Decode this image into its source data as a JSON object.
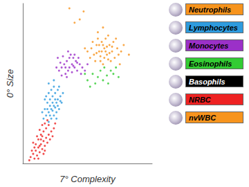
{
  "chart_data": {
    "type": "scatter",
    "x_label": "7° Complexity",
    "y_label": "0° Size",
    "xlim": [
      0,
      100
    ],
    "ylim": [
      0,
      100
    ],
    "tick_labels": false,
    "grid": false,
    "legend": "right",
    "series": [
      {
        "name": "Neutrophils",
        "color": "#f7941d",
        "values": [
          [
            50,
            70
          ],
          [
            53,
            72
          ],
          [
            55,
            68
          ],
          [
            57,
            74
          ],
          [
            59,
            70
          ],
          [
            61,
            76
          ],
          [
            63,
            72
          ],
          [
            65,
            68
          ],
          [
            67,
            74
          ],
          [
            69,
            70
          ],
          [
            71,
            66
          ],
          [
            73,
            72
          ],
          [
            60,
            64
          ],
          [
            62,
            62
          ],
          [
            64,
            78
          ],
          [
            66,
            80
          ],
          [
            58,
            78
          ],
          [
            56,
            64
          ],
          [
            54,
            76
          ],
          [
            68,
            64
          ],
          [
            70,
            76
          ],
          [
            72,
            78
          ],
          [
            74,
            68
          ],
          [
            76,
            70
          ],
          [
            61,
            70
          ],
          [
            63,
            66
          ],
          [
            59,
            74
          ],
          [
            65,
            73
          ],
          [
            67,
            69
          ],
          [
            62,
            74
          ],
          [
            57,
            69
          ],
          [
            69,
            73
          ],
          [
            64,
            70
          ],
          [
            66,
            65
          ],
          [
            60,
            67
          ],
          [
            52,
            66
          ],
          [
            78,
            74
          ],
          [
            75,
            62
          ],
          [
            48,
            72
          ],
          [
            58,
            82
          ],
          [
            62,
            85
          ],
          [
            44,
            90
          ],
          [
            36,
            97
          ],
          [
            47,
            95
          ],
          [
            40,
            88
          ],
          [
            82,
            68
          ]
        ]
      },
      {
        "name": "Lymphocytes",
        "color": "#2e9bde",
        "values": [
          [
            16,
            28
          ],
          [
            18,
            30
          ],
          [
            20,
            32
          ],
          [
            22,
            34
          ],
          [
            24,
            36
          ],
          [
            26,
            38
          ],
          [
            19,
            38
          ],
          [
            21,
            40
          ],
          [
            23,
            42
          ],
          [
            25,
            44
          ],
          [
            27,
            40
          ],
          [
            28,
            34
          ],
          [
            17,
            34
          ],
          [
            20,
            26
          ],
          [
            24,
            30
          ],
          [
            26,
            32
          ],
          [
            22,
            46
          ],
          [
            24,
            48
          ],
          [
            20,
            44
          ],
          [
            18,
            42
          ],
          [
            29,
            42
          ],
          [
            30,
            38
          ],
          [
            23,
            38
          ],
          [
            21,
            36
          ],
          [
            25,
            40
          ],
          [
            27,
            46
          ],
          [
            19,
            34
          ],
          [
            22,
            28
          ],
          [
            26,
            28
          ],
          [
            15,
            32
          ],
          [
            28,
            48
          ],
          [
            24,
            52
          ],
          [
            20,
            50
          ],
          [
            31,
            44
          ],
          [
            23,
            33
          ],
          [
            25,
            35
          ],
          [
            21,
            30
          ],
          [
            17,
            40
          ],
          [
            27,
            36
          ],
          [
            29,
            39
          ]
        ]
      },
      {
        "name": "Monocytes",
        "color": "#9b30c8",
        "values": [
          [
            28,
            58
          ],
          [
            30,
            60
          ],
          [
            32,
            62
          ],
          [
            34,
            64
          ],
          [
            36,
            66
          ],
          [
            38,
            62
          ],
          [
            40,
            60
          ],
          [
            42,
            58
          ],
          [
            35,
            58
          ],
          [
            33,
            56
          ],
          [
            37,
            68
          ],
          [
            39,
            66
          ],
          [
            41,
            64
          ],
          [
            44,
            62
          ],
          [
            46,
            60
          ],
          [
            30,
            55
          ],
          [
            29,
            63
          ],
          [
            31,
            67
          ],
          [
            35,
            70
          ],
          [
            43,
            66
          ],
          [
            45,
            56
          ],
          [
            48,
            58
          ],
          [
            36,
            60
          ],
          [
            38,
            57
          ],
          [
            40,
            68
          ],
          [
            33,
            60
          ],
          [
            39,
            61
          ],
          [
            42,
            63
          ],
          [
            26,
            60
          ],
          [
            34,
            54
          ],
          [
            50,
            62
          ],
          [
            27,
            66
          ]
        ]
      },
      {
        "name": "Eosinophils",
        "color": "#33cc33",
        "values": [
          [
            50,
            52
          ],
          [
            54,
            56
          ],
          [
            56,
            50
          ],
          [
            58,
            54
          ],
          [
            60,
            58
          ],
          [
            62,
            52
          ],
          [
            65,
            55
          ],
          [
            68,
            58
          ],
          [
            70,
            56
          ],
          [
            72,
            60
          ],
          [
            48,
            56
          ],
          [
            52,
            48
          ],
          [
            66,
            50
          ],
          [
            74,
            54
          ],
          [
            63,
            60
          ]
        ]
      },
      {
        "name": "Basophils",
        "color": "#000000",
        "values": []
      },
      {
        "name": "NRBC",
        "color": "#ee2222",
        "values": [
          [
            6,
            4
          ],
          [
            8,
            6
          ],
          [
            9,
            3
          ],
          [
            10,
            8
          ],
          [
            11,
            5
          ],
          [
            12,
            10
          ],
          [
            13,
            7
          ],
          [
            14,
            12
          ],
          [
            15,
            9
          ],
          [
            16,
            14
          ],
          [
            17,
            11
          ],
          [
            18,
            16
          ],
          [
            12,
            15
          ],
          [
            14,
            18
          ],
          [
            16,
            20
          ],
          [
            18,
            22
          ],
          [
            20,
            18
          ],
          [
            19,
            13
          ],
          [
            21,
            15
          ],
          [
            22,
            20
          ],
          [
            10,
            12
          ],
          [
            13,
            21
          ],
          [
            15,
            24
          ],
          [
            17,
            25
          ],
          [
            11,
            17
          ],
          [
            9,
            10
          ],
          [
            7,
            8
          ],
          [
            20,
            24
          ],
          [
            23,
            17
          ],
          [
            24,
            22
          ],
          [
            12,
            3
          ],
          [
            16,
            6
          ],
          [
            8,
            13
          ],
          [
            19,
            27
          ],
          [
            14,
            15
          ],
          [
            15,
            17
          ],
          [
            13,
            11
          ],
          [
            17,
            8
          ],
          [
            5,
            2
          ],
          [
            25,
            25
          ]
        ]
      },
      {
        "name": "nvWBC",
        "color": "#f7941d",
        "values": []
      }
    ]
  }
}
